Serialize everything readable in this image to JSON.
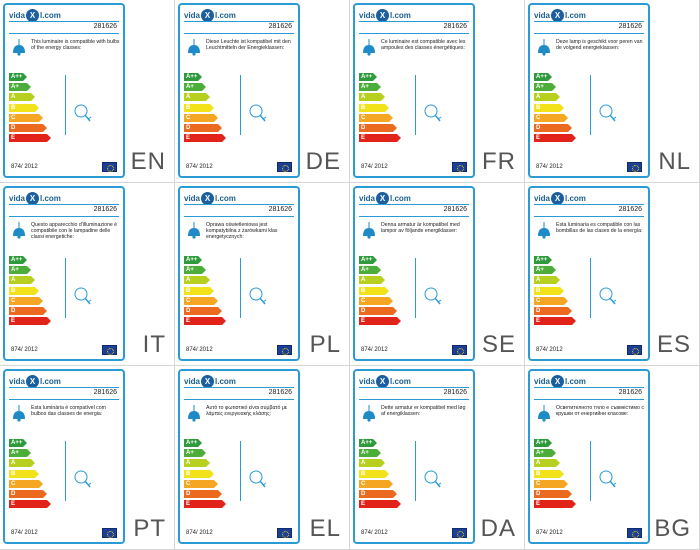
{
  "brand": {
    "left": "vida",
    "badge": "X",
    "right": "l.com"
  },
  "product_code": "281626",
  "regulation": "874/ 2012",
  "classes": [
    "A++",
    "A+",
    "A",
    "B",
    "C",
    "D",
    "E"
  ],
  "class_colors": [
    "#2e9a3c",
    "#4cad3a",
    "#b7cf1e",
    "#f2e21a",
    "#f5a623",
    "#ec6a1f",
    "#e2231a"
  ],
  "labels": [
    {
      "lang": "EN",
      "text": "This luminaire is compatible with bulbs of the energy classes:"
    },
    {
      "lang": "DE",
      "text": "Diese Leuchte ist kompatibel mit den Leuchtmitteln der Energieklassen:"
    },
    {
      "lang": "FR",
      "text": "Ce luminaire est compatible avec les ampoules des classes énergétiques:"
    },
    {
      "lang": "NL",
      "text": "Deze lamp is geschikt voor peren van de volgend energieklassen:"
    },
    {
      "lang": "IT",
      "text": "Questo apparecchio d'illuminazione è compatibile con le lampadine delle classi energetiche:"
    },
    {
      "lang": "PL",
      "text": "Oprawa oświetleniowa jest kompatybilna z żarówkami klas energetycznych:"
    },
    {
      "lang": "SE",
      "text": "Denna armatur är kompatibel med lampor av följande energiklasser:"
    },
    {
      "lang": "ES",
      "text": "Esta luminaria es compatible con las bombillas de las clases de la energía:"
    },
    {
      "lang": "PT",
      "text": "Esta luminária é compatível com bulbos das classes de energia:"
    },
    {
      "lang": "EL",
      "text": "Αυτό το φωτιστικό είναι συμβατό με λάμπες ενεργειακής κλάσης:"
    },
    {
      "lang": "DA",
      "text": "Dette armatur er kompatibel med løg af energiklassen:"
    },
    {
      "lang": "BG",
      "text": "Осветителното тяло е съвместимо с крушки от енергийни класове:"
    }
  ]
}
